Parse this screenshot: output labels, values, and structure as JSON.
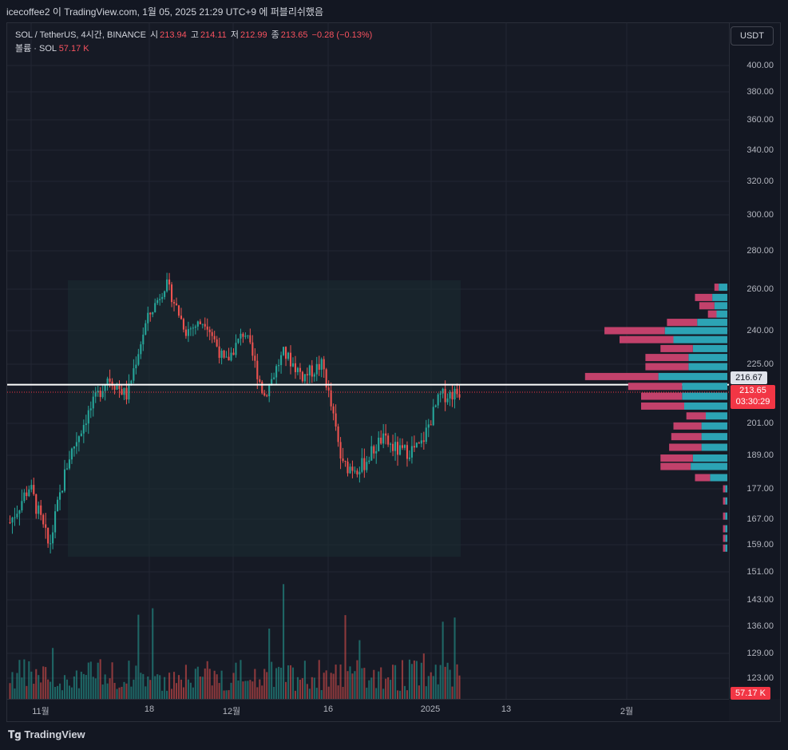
{
  "header": {
    "published_text": "icecoffee2 이 TradingView.com, 1월 05, 2025 21:29 UTC+9 에 퍼블리쉬했음"
  },
  "legend": {
    "symbol": "SOL / TetherUS, 4시간, BINANCE",
    "o_label": "시",
    "o_value": "213.94",
    "h_label": "고",
    "h_value": "214.11",
    "l_label": "저",
    "l_value": "212.99",
    "c_label": "종",
    "c_value": "213.65",
    "change": "−0.28 (−0.13%)",
    "volume_label": "볼륨 · SOL",
    "volume_value": "57.17 K"
  },
  "currency_button": "USDT",
  "price_labels": {
    "level": "216.67",
    "last_price": "213.65",
    "countdown": "03:30:29",
    "volume": "57.17 K"
  },
  "colors": {
    "bull": "#26a69a",
    "bear": "#ef5350",
    "vp_up": "#2ca3b4",
    "vp_down": "#c2416b",
    "background": "#161a25"
  },
  "footer": {
    "brand": "TradingView",
    "logo_icon": "tradingview-logo-icon"
  },
  "chart_data": {
    "type": "candlestick",
    "symbol": "SOL / TetherUS",
    "interval": "4시간",
    "exchange": "BINANCE",
    "price_axis_ticks": [
      400,
      380,
      360,
      340,
      320,
      300,
      280,
      260,
      240,
      225,
      201,
      189,
      177,
      167,
      159,
      151,
      143,
      136,
      129,
      123
    ],
    "price_axis_labels": [
      "400.00",
      "380.00",
      "360.00",
      "340.00",
      "320.00",
      "300.00",
      "280.00",
      "260.00",
      "240.00",
      "225.00",
      "201.00",
      "189.00",
      "177.00",
      "167.00",
      "159.00",
      "151.00",
      "143.00",
      "136.00",
      "129.00",
      "123.00"
    ],
    "time_axis_labels": [
      "11월",
      "18",
      "12월",
      "16",
      "2025",
      "13",
      "2월"
    ],
    "highlight_level": 216.67,
    "last_close": 213.65,
    "price_path_keypoints": [
      {
        "x": "early Nov",
        "close": 166
      },
      {
        "x": "Nov 3",
        "close": 178
      },
      {
        "x": "Nov 10",
        "close": 158
      },
      {
        "x": "Nov 12",
        "close": 188
      },
      {
        "x": "Nov 15",
        "close": 205
      },
      {
        "x": "Nov 17",
        "close": 220
      },
      {
        "x": "Nov 20",
        "close": 212
      },
      {
        "x": "Nov 22",
        "close": 245
      },
      {
        "x": "Nov 23",
        "close": 263
      },
      {
        "x": "Nov 25",
        "close": 240
      },
      {
        "x": "Nov 28",
        "close": 245
      },
      {
        "x": "Dec 3",
        "close": 225
      },
      {
        "x": "Dec 6",
        "close": 240
      },
      {
        "x": "Dec 9",
        "close": 212
      },
      {
        "x": "Dec 12",
        "close": 230
      },
      {
        "x": "Dec 15",
        "close": 220
      },
      {
        "x": "Dec 18",
        "close": 225
      },
      {
        "x": "Dec 20",
        "close": 185
      },
      {
        "x": "Dec 23",
        "close": 185
      },
      {
        "x": "Dec 26",
        "close": 195
      },
      {
        "x": "Dec 29",
        "close": 190
      },
      {
        "x": "Jan 1",
        "close": 192
      },
      {
        "x": "Jan 3",
        "close": 212
      },
      {
        "x": "Jan 5",
        "close": 213.65
      }
    ],
    "volume_profile": [
      {
        "price": 261,
        "up": 0.04,
        "down": 0.02
      },
      {
        "price": 256,
        "up": 0.07,
        "down": 0.08
      },
      {
        "price": 252,
        "up": 0.06,
        "down": 0.07
      },
      {
        "price": 248,
        "up": 0.05,
        "down": 0.04
      },
      {
        "price": 244,
        "up": 0.14,
        "down": 0.14
      },
      {
        "price": 240,
        "up": 0.29,
        "down": 0.28
      },
      {
        "price": 236,
        "up": 0.25,
        "down": 0.25
      },
      {
        "price": 232,
        "up": 0.16,
        "down": 0.15
      },
      {
        "price": 228,
        "up": 0.18,
        "down": 0.2
      },
      {
        "price": 224,
        "up": 0.18,
        "down": 0.2
      },
      {
        "price": 220,
        "up": 0.32,
        "down": 0.34
      },
      {
        "price": 216,
        "up": 0.21,
        "down": 0.25
      },
      {
        "price": 212,
        "up": 0.21,
        "down": 0.19
      },
      {
        "price": 208,
        "up": 0.2,
        "down": 0.2
      },
      {
        "price": 204,
        "up": 0.1,
        "down": 0.09
      },
      {
        "price": 200,
        "up": 0.12,
        "down": 0.13
      },
      {
        "price": 196,
        "up": 0.12,
        "down": 0.14
      },
      {
        "price": 192,
        "up": 0.12,
        "down": 0.15
      },
      {
        "price": 188,
        "up": 0.16,
        "down": 0.15
      },
      {
        "price": 185,
        "up": 0.17,
        "down": 0.14
      },
      {
        "price": 181,
        "up": 0.08,
        "down": 0.07
      },
      {
        "price": 177,
        "up": 0.01,
        "down": 0.01
      },
      {
        "price": 173,
        "up": 0.01,
        "down": 0.01
      },
      {
        "price": 168,
        "up": 0.01,
        "down": 0.01
      },
      {
        "price": 164,
        "up": 0.01,
        "down": 0.01
      },
      {
        "price": 161,
        "up": 0.01,
        "down": 0.01
      },
      {
        "price": 158,
        "up": 0.01,
        "down": 0.01
      }
    ]
  }
}
